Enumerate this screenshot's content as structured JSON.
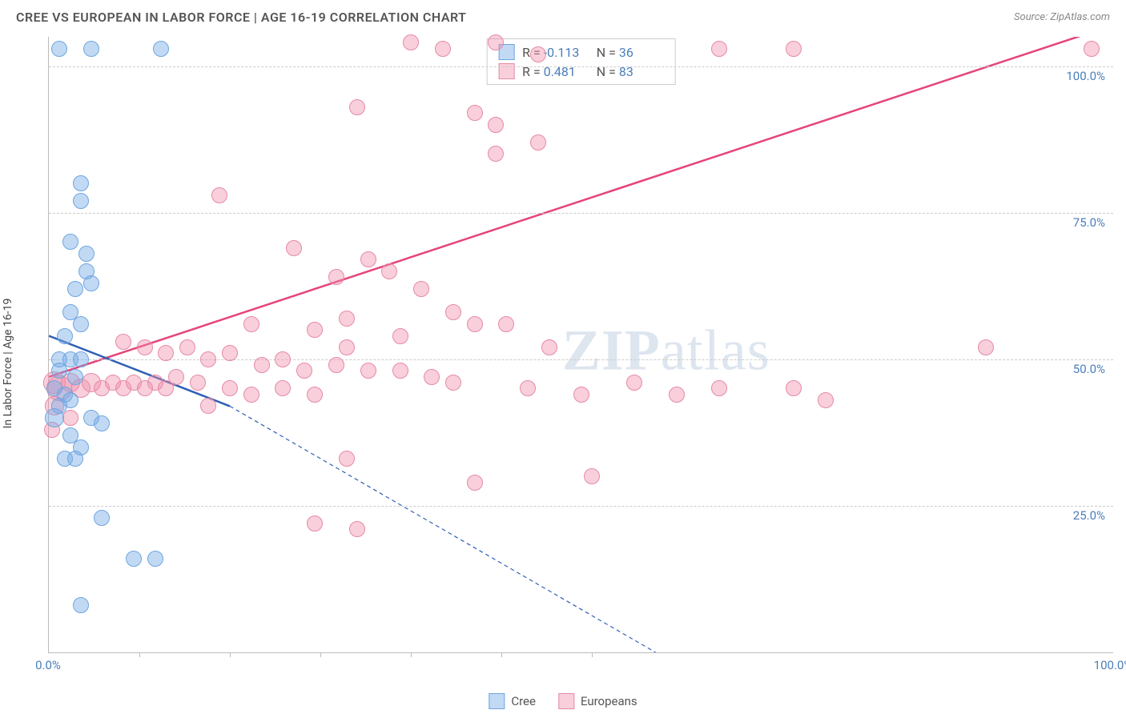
{
  "title": "CREE VS EUROPEAN IN LABOR FORCE | AGE 16-19 CORRELATION CHART",
  "source": "Source: ZipAtlas.com",
  "watermark_a": "ZIP",
  "watermark_b": "atlas",
  "ylabel": "In Labor Force | Age 16-19",
  "xlim": [
    0,
    100
  ],
  "ylim": [
    0,
    105
  ],
  "yticks": [
    {
      "v": 25,
      "label": "25.0%"
    },
    {
      "v": 50,
      "label": "50.0%"
    },
    {
      "v": 75,
      "label": "75.0%"
    },
    {
      "v": 100,
      "label": "100.0%"
    }
  ],
  "xticks_major": [
    8.5,
    17,
    25.5,
    34,
    42.5,
    51
  ],
  "xlabels": [
    {
      "v": 0,
      "label": "0.0%"
    },
    {
      "v": 100,
      "label": "100.0%"
    }
  ],
  "colors": {
    "cree_fill": "rgba(120,170,230,0.45)",
    "cree_stroke": "#6ea6df",
    "cree_line": "#2f5fb5",
    "euro_fill": "rgba(240,140,170,0.42)",
    "euro_stroke": "#e58aa6",
    "euro_line": "#e6447a",
    "grid": "#cccccc",
    "axis": "#bbbbbb",
    "tick_text": "#4a7ebb"
  },
  "series": {
    "cree": {
      "label": "Cree",
      "r_label": "R =",
      "r_value": "-0.113",
      "n_label": "N =",
      "n_value": "36",
      "reg": {
        "x1": 0,
        "y1": 54,
        "x2_solid": 17,
        "y2_solid": 42,
        "x2": 57,
        "y2": 0
      },
      "points": [
        {
          "x": 1,
          "y": 103,
          "s": 10
        },
        {
          "x": 4,
          "y": 103,
          "s": 10
        },
        {
          "x": 10.5,
          "y": 103,
          "s": 10
        },
        {
          "x": 3,
          "y": 80,
          "s": 10
        },
        {
          "x": 3,
          "y": 77,
          "s": 10
        },
        {
          "x": 2,
          "y": 70,
          "s": 10
        },
        {
          "x": 3.5,
          "y": 68,
          "s": 10
        },
        {
          "x": 3.5,
          "y": 65,
          "s": 10
        },
        {
          "x": 2.5,
          "y": 62,
          "s": 10
        },
        {
          "x": 2,
          "y": 58,
          "s": 10
        },
        {
          "x": 4,
          "y": 63,
          "s": 10
        },
        {
          "x": 3,
          "y": 56,
          "s": 10
        },
        {
          "x": 1.5,
          "y": 54,
          "s": 10
        },
        {
          "x": 1,
          "y": 50,
          "s": 10
        },
        {
          "x": 2,
          "y": 50,
          "s": 10
        },
        {
          "x": 3,
          "y": 50,
          "s": 10
        },
        {
          "x": 1,
          "y": 48,
          "s": 10
        },
        {
          "x": 2.5,
          "y": 47,
          "s": 10
        },
        {
          "x": 0.5,
          "y": 45,
          "s": 10
        },
        {
          "x": 1.5,
          "y": 44,
          "s": 10
        },
        {
          "x": 2,
          "y": 43,
          "s": 10
        },
        {
          "x": 1,
          "y": 42,
          "s": 10
        },
        {
          "x": 0.5,
          "y": 40,
          "s": 12
        },
        {
          "x": 4,
          "y": 40,
          "s": 10
        },
        {
          "x": 5,
          "y": 39,
          "s": 10
        },
        {
          "x": 2,
          "y": 37,
          "s": 10
        },
        {
          "x": 3,
          "y": 35,
          "s": 10
        },
        {
          "x": 1.5,
          "y": 33,
          "s": 10
        },
        {
          "x": 2.5,
          "y": 33,
          "s": 10
        },
        {
          "x": 5,
          "y": 23,
          "s": 10
        },
        {
          "x": 8,
          "y": 16,
          "s": 10
        },
        {
          "x": 10,
          "y": 16,
          "s": 10
        },
        {
          "x": 3,
          "y": 8,
          "s": 10
        }
      ]
    },
    "euro": {
      "label": "Europeans",
      "r_label": "R =",
      "r_value": "0.481",
      "n_label": "N =",
      "n_value": "83",
      "reg": {
        "x1": 0,
        "y1": 47,
        "x2": 100,
        "y2": 107
      },
      "points": [
        {
          "x": 34,
          "y": 104,
          "s": 10
        },
        {
          "x": 37,
          "y": 103,
          "s": 10
        },
        {
          "x": 42,
          "y": 104,
          "s": 10
        },
        {
          "x": 46,
          "y": 102,
          "s": 10
        },
        {
          "x": 63,
          "y": 103,
          "s": 10
        },
        {
          "x": 70,
          "y": 103,
          "s": 10
        },
        {
          "x": 98,
          "y": 103,
          "s": 10
        },
        {
          "x": 29,
          "y": 93,
          "s": 10
        },
        {
          "x": 40,
          "y": 92,
          "s": 10
        },
        {
          "x": 42,
          "y": 90,
          "s": 10
        },
        {
          "x": 46,
          "y": 87,
          "s": 10
        },
        {
          "x": 42,
          "y": 85,
          "s": 10
        },
        {
          "x": 16,
          "y": 78,
          "s": 10
        },
        {
          "x": 23,
          "y": 69,
          "s": 10
        },
        {
          "x": 30,
          "y": 67,
          "s": 10
        },
        {
          "x": 32,
          "y": 65,
          "s": 10
        },
        {
          "x": 27,
          "y": 64,
          "s": 10
        },
        {
          "x": 35,
          "y": 62,
          "s": 10
        },
        {
          "x": 38,
          "y": 58,
          "s": 10
        },
        {
          "x": 28,
          "y": 57,
          "s": 10
        },
        {
          "x": 19,
          "y": 56,
          "s": 10
        },
        {
          "x": 25,
          "y": 55,
          "s": 10
        },
        {
          "x": 33,
          "y": 54,
          "s": 10
        },
        {
          "x": 40,
          "y": 56,
          "s": 10
        },
        {
          "x": 43,
          "y": 56,
          "s": 10
        },
        {
          "x": 7,
          "y": 53,
          "s": 10
        },
        {
          "x": 9,
          "y": 52,
          "s": 10
        },
        {
          "x": 11,
          "y": 51,
          "s": 10
        },
        {
          "x": 13,
          "y": 52,
          "s": 10
        },
        {
          "x": 15,
          "y": 50,
          "s": 10
        },
        {
          "x": 17,
          "y": 51,
          "s": 10
        },
        {
          "x": 20,
          "y": 49,
          "s": 10
        },
        {
          "x": 22,
          "y": 50,
          "s": 10
        },
        {
          "x": 24,
          "y": 48,
          "s": 10
        },
        {
          "x": 27,
          "y": 49,
          "s": 10
        },
        {
          "x": 30,
          "y": 48,
          "s": 10
        },
        {
          "x": 33,
          "y": 48,
          "s": 10
        },
        {
          "x": 36,
          "y": 47,
          "s": 10
        },
        {
          "x": 28,
          "y": 52,
          "s": 10
        },
        {
          "x": 0.5,
          "y": 46,
          "s": 14
        },
        {
          "x": 1,
          "y": 45,
          "s": 16
        },
        {
          "x": 2,
          "y": 46,
          "s": 12
        },
        {
          "x": 3,
          "y": 45,
          "s": 12
        },
        {
          "x": 4,
          "y": 46,
          "s": 12
        },
        {
          "x": 5,
          "y": 45,
          "s": 10
        },
        {
          "x": 6,
          "y": 46,
          "s": 10
        },
        {
          "x": 7,
          "y": 45,
          "s": 10
        },
        {
          "x": 8,
          "y": 46,
          "s": 10
        },
        {
          "x": 9,
          "y": 45,
          "s": 10
        },
        {
          "x": 10,
          "y": 46,
          "s": 10
        },
        {
          "x": 11,
          "y": 45,
          "s": 10
        },
        {
          "x": 12,
          "y": 47,
          "s": 10
        },
        {
          "x": 14,
          "y": 46,
          "s": 10
        },
        {
          "x": 17,
          "y": 45,
          "s": 10
        },
        {
          "x": 19,
          "y": 44,
          "s": 10
        },
        {
          "x": 22,
          "y": 45,
          "s": 10
        },
        {
          "x": 25,
          "y": 44,
          "s": 10
        },
        {
          "x": 38,
          "y": 46,
          "s": 10
        },
        {
          "x": 45,
          "y": 45,
          "s": 10
        },
        {
          "x": 47,
          "y": 52,
          "s": 10
        },
        {
          "x": 50,
          "y": 44,
          "s": 10
        },
        {
          "x": 55,
          "y": 46,
          "s": 10
        },
        {
          "x": 59,
          "y": 44,
          "s": 10
        },
        {
          "x": 63,
          "y": 45,
          "s": 10
        },
        {
          "x": 70,
          "y": 45,
          "s": 10
        },
        {
          "x": 73,
          "y": 43,
          "s": 10
        },
        {
          "x": 88,
          "y": 52,
          "s": 10
        },
        {
          "x": 0.5,
          "y": 42,
          "s": 12
        },
        {
          "x": 2,
          "y": 40,
          "s": 10
        },
        {
          "x": 0.3,
          "y": 38,
          "s": 10
        },
        {
          "x": 15,
          "y": 42,
          "s": 10
        },
        {
          "x": 28,
          "y": 33,
          "s": 10
        },
        {
          "x": 25,
          "y": 22,
          "s": 10
        },
        {
          "x": 29,
          "y": 21,
          "s": 10
        },
        {
          "x": 40,
          "y": 29,
          "s": 10
        },
        {
          "x": 51,
          "y": 30,
          "s": 10
        }
      ]
    }
  }
}
